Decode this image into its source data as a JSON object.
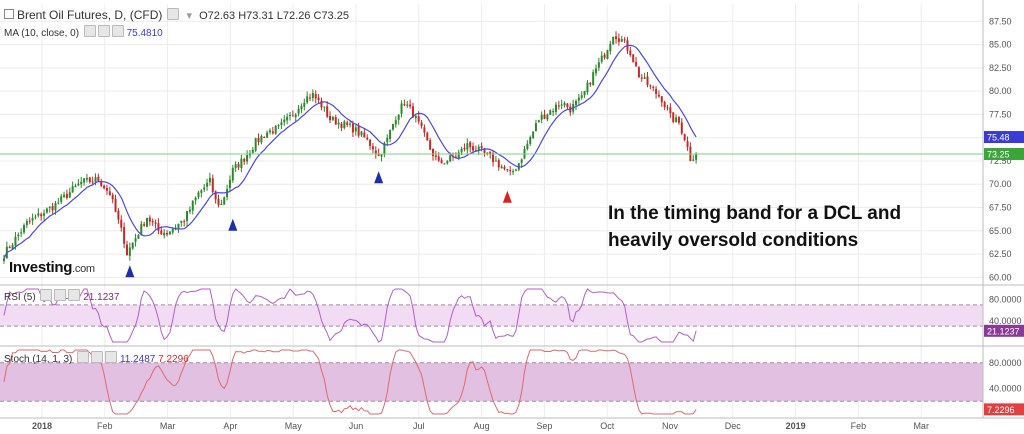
{
  "header": {
    "symbol": "Brent Oil Futures, D, (CFD)",
    "open": "O72.63",
    "high": "H73.31",
    "low": "L72.26",
    "close": "C73.25"
  },
  "ma_header": {
    "label": "MA (10, close, 0)",
    "value": "75.4810"
  },
  "rsi_header": {
    "label": "RSI (5)",
    "value": "21.1237"
  },
  "stoch_header": {
    "label": "Stoch (14, 1, 3)",
    "value1": "11.2487",
    "value2": "7.2296"
  },
  "annotation": {
    "line1": "In the timing band for a DCL and",
    "line2": "heavily oversold conditions"
  },
  "logo": {
    "brand": "Investing",
    "suffix": ".com"
  },
  "colors": {
    "up": "#2a8a2a",
    "down": "#c62828",
    "ma": "#4a4ae0",
    "rsi": "#b45ec9",
    "stoch": "#e06a6a",
    "current_price_line": "#7ccf7c",
    "arrow_blue": "#1d2fa8",
    "arrow_red": "#e02020"
  },
  "chart_data": [
    {
      "type": "candlestick",
      "title": "Brent Oil Futures, D, (CFD)",
      "x_labels": [
        "2018",
        "Feb",
        "Mar",
        "Apr",
        "May",
        "Jun",
        "Jul",
        "Aug",
        "Sep",
        "Oct",
        "Nov",
        "Dec",
        "2019",
        "Feb",
        "Mar"
      ],
      "y_ticks": [
        "87.50",
        "85.00",
        "82.50",
        "80.00",
        "77.50",
        "75.00",
        "72.50",
        "70.00",
        "67.50",
        "65.00",
        "62.50",
        "60.00"
      ],
      "ylim": [
        59.5,
        88.5
      ],
      "last_close": 73.25,
      "last_label": "73.25",
      "ma_last_label": "75.48",
      "ma_period": 10,
      "price_anchors": [
        {
          "d": 0,
          "p": 62.5
        },
        {
          "d": 8,
          "p": 65.8
        },
        {
          "d": 18,
          "p": 67.8
        },
        {
          "d": 27,
          "p": 70.2
        },
        {
          "d": 33,
          "p": 70.5
        },
        {
          "d": 37,
          "p": 69.0
        },
        {
          "d": 42,
          "p": 64.0
        },
        {
          "d": 43,
          "p": 62.6
        },
        {
          "d": 50,
          "p": 66.5
        },
        {
          "d": 54,
          "p": 65.0
        },
        {
          "d": 57,
          "p": 64.8
        },
        {
          "d": 63,
          "p": 66.2
        },
        {
          "d": 68,
          "p": 69.0
        },
        {
          "d": 72,
          "p": 70.3
        },
        {
          "d": 74,
          "p": 68.2
        },
        {
          "d": 76,
          "p": 67.8
        },
        {
          "d": 80,
          "p": 71.5
        },
        {
          "d": 84,
          "p": 72.8
        },
        {
          "d": 88,
          "p": 74.5
        },
        {
          "d": 92,
          "p": 75.6
        },
        {
          "d": 96,
          "p": 76.0
        },
        {
          "d": 101,
          "p": 77.5
        },
        {
          "d": 105,
          "p": 79.2
        },
        {
          "d": 108,
          "p": 79.6
        },
        {
          "d": 111,
          "p": 78.5
        },
        {
          "d": 114,
          "p": 77.0
        },
        {
          "d": 118,
          "p": 76.5
        },
        {
          "d": 122,
          "p": 76.0
        },
        {
          "d": 126,
          "p": 75.0
        },
        {
          "d": 129,
          "p": 74.0
        },
        {
          "d": 131,
          "p": 73.0
        },
        {
          "d": 134,
          "p": 74.8
        },
        {
          "d": 137,
          "p": 77.3
        },
        {
          "d": 140,
          "p": 78.8
        },
        {
          "d": 143,
          "p": 77.6
        },
        {
          "d": 146,
          "p": 75.8
        },
        {
          "d": 149,
          "p": 73.8
        },
        {
          "d": 152,
          "p": 72.2
        },
        {
          "d": 155,
          "p": 72.6
        },
        {
          "d": 158,
          "p": 73.0
        },
        {
          "d": 162,
          "p": 74.2
        },
        {
          "d": 166,
          "p": 73.6
        },
        {
          "d": 170,
          "p": 72.9
        },
        {
          "d": 174,
          "p": 71.9
        },
        {
          "d": 177,
          "p": 71.0
        },
        {
          "d": 180,
          "p": 72.3
        },
        {
          "d": 184,
          "p": 75.0
        },
        {
          "d": 187,
          "p": 77.0
        },
        {
          "d": 191,
          "p": 77.9
        },
        {
          "d": 195,
          "p": 78.8
        },
        {
          "d": 198,
          "p": 78.1
        },
        {
          "d": 202,
          "p": 79.2
        },
        {
          "d": 206,
          "p": 81.8
        },
        {
          "d": 210,
          "p": 84.0
        },
        {
          "d": 213,
          "p": 86.2
        },
        {
          "d": 216,
          "p": 85.5
        },
        {
          "d": 219,
          "p": 84.2
        },
        {
          "d": 222,
          "p": 81.7
        },
        {
          "d": 226,
          "p": 80.4
        },
        {
          "d": 230,
          "p": 79.2
        },
        {
          "d": 233,
          "p": 77.2
        },
        {
          "d": 236,
          "p": 76.6
        },
        {
          "d": 238,
          "p": 75.0
        },
        {
          "d": 240,
          "p": 72.8
        },
        {
          "d": 242,
          "p": 73.25
        }
      ],
      "arrows": [
        {
          "d": 44,
          "p": 61.3,
          "direction": "up",
          "color": "blue"
        },
        {
          "d": 80,
          "p": 66.3,
          "direction": "up",
          "color": "blue"
        },
        {
          "d": 131,
          "p": 71.4,
          "direction": "up",
          "color": "blue"
        },
        {
          "d": 176,
          "p": 69.3,
          "direction": "up",
          "color": "red"
        }
      ]
    },
    {
      "type": "line",
      "title": "RSI (5)",
      "y_ticks": [
        "80.0000",
        "40.0000"
      ],
      "ylim": [
        0,
        100
      ],
      "band": [
        30,
        70
      ],
      "last_value": 21.1237,
      "last_label": "21.1237"
    },
    {
      "type": "line",
      "title": "Stoch (14, 1, 3)",
      "y_ticks": [
        "80.0000",
        "40.0000"
      ],
      "ylim": [
        0,
        100
      ],
      "band": [
        20,
        80
      ],
      "last_values": [
        11.2487,
        7.2296
      ],
      "last_label": "7.2296"
    }
  ]
}
